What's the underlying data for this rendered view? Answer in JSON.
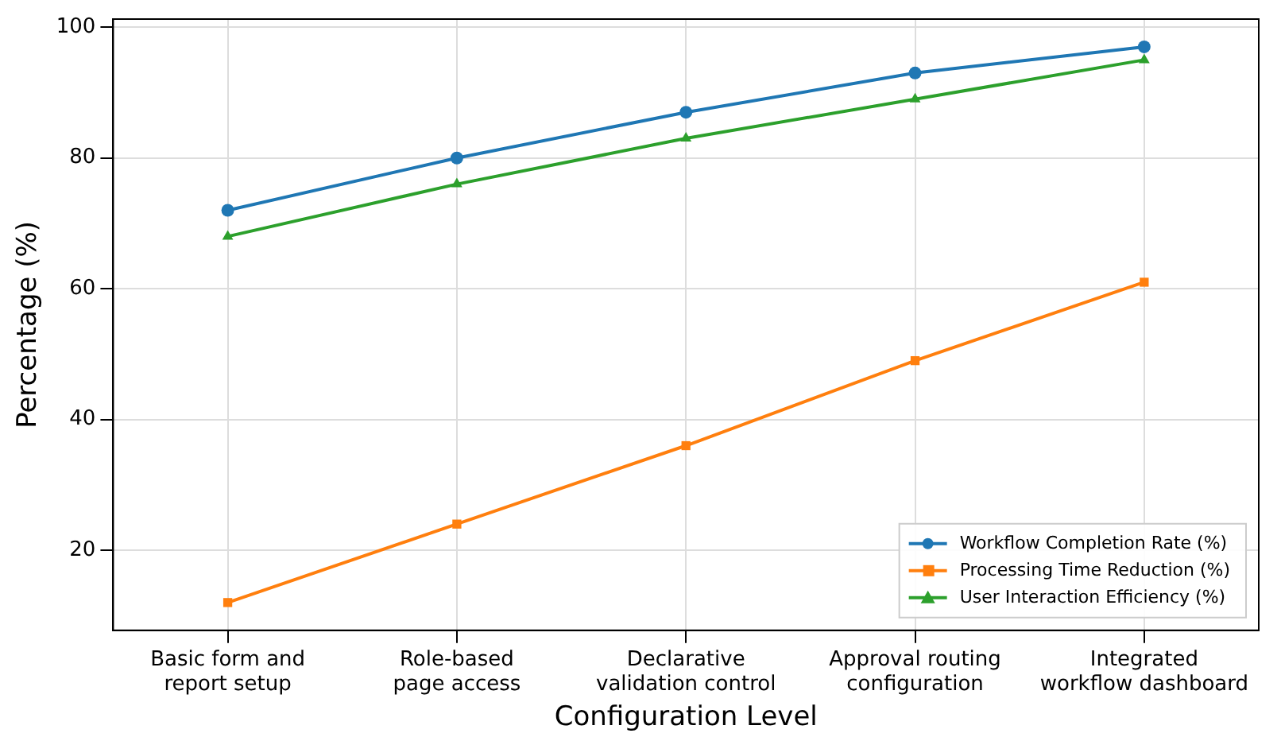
{
  "chart_data": {
    "type": "line",
    "xlabel": "Configuration Level",
    "ylabel": "Percentage (%)",
    "categories": [
      "Basic form and report setup",
      "Role-based page access",
      "Declarative validation control",
      "Approval routing configuration",
      "Integrated workflow dashboard"
    ],
    "series": [
      {
        "name": "Workflow Completion Rate (%)",
        "color": "#1f77b4",
        "marker": "circle",
        "values": [
          72,
          80,
          87,
          93,
          97
        ]
      },
      {
        "name": "Processing Time Reduction (%)",
        "color": "#ff7f0e",
        "marker": "square",
        "values": [
          12,
          24,
          36,
          49,
          61
        ]
      },
      {
        "name": "User Interaction Efficiency (%)",
        "color": "#2ca02c",
        "marker": "triangle",
        "values": [
          68,
          76,
          83,
          89,
          95
        ]
      }
    ],
    "ylim": [
      7.75,
      101.25
    ],
    "yticks": [
      20,
      40,
      60,
      80,
      100
    ],
    "grid": true,
    "legend": "bottom right",
    "line_style": "solid"
  }
}
